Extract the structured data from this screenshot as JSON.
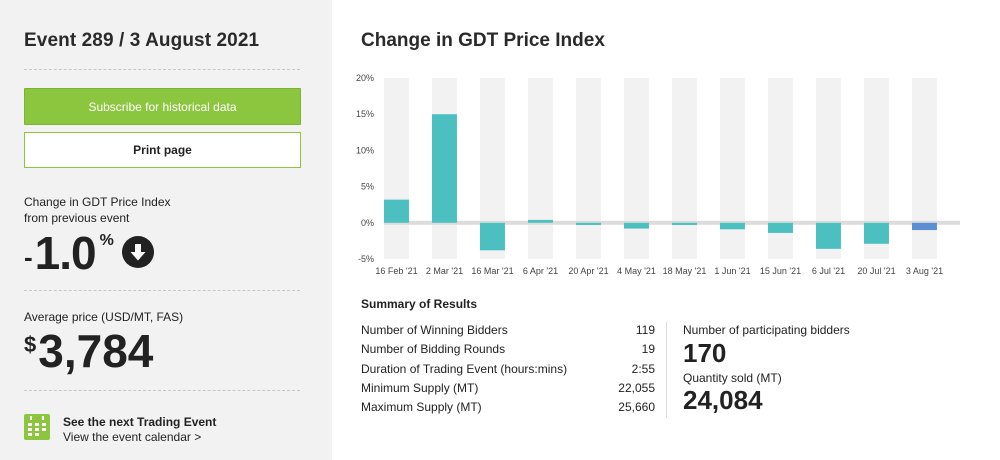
{
  "event": {
    "title": "Event 289 / 3 August 2021"
  },
  "buttons": {
    "subscribe": "Subscribe for historical data",
    "print": "Print page"
  },
  "change": {
    "label_line1": "Change in GDT Price Index",
    "label_line2": "from previous event",
    "sign": "-",
    "value": "1.0",
    "unit": "%",
    "direction_icon": "arrow-down-circle-icon"
  },
  "average": {
    "label": "Average price (USD/MT, FAS)",
    "currency": "$",
    "value": "3,784"
  },
  "next_event": {
    "title": "See the next Trading Event",
    "link": "View the event calendar >",
    "icon": "calendar-icon"
  },
  "chart_title": "Change in GDT Price Index",
  "chart_data": {
    "type": "bar",
    "categories": [
      "16 Feb '21",
      "2 Mar '21",
      "16 Mar '21",
      "6 Apr '21",
      "20 Apr '21",
      "4 May '21",
      "18 May '21",
      "1 Jun '21",
      "15 Jun '21",
      "6 Jul '21",
      "20 Jul '21",
      "3 Aug '21"
    ],
    "values": [
      3.2,
      15.0,
      -3.8,
      0.4,
      -0.3,
      -0.8,
      -0.3,
      -0.9,
      -1.4,
      -3.6,
      -2.9,
      -1.0
    ],
    "y_ticks": [
      "20%",
      "15%",
      "10%",
      "5%",
      "0%",
      "-5%"
    ],
    "ylim": [
      -5,
      20
    ],
    "grid": false,
    "colors": {
      "bar": "#4cc0c0",
      "latest": "#5b8fd4",
      "band": "#f2f2f2",
      "zero": "#dcdcdc"
    }
  },
  "summary": {
    "title": "Summary of Results",
    "rows": [
      {
        "label": "Number of Winning Bidders",
        "value": "119"
      },
      {
        "label": "Number of Bidding Rounds",
        "value": "19"
      },
      {
        "label": "Duration of Trading Event (hours:mins)",
        "value": "2:55"
      },
      {
        "label": "Minimum Supply (MT)",
        "value": "22,055"
      },
      {
        "label": "Maximum Supply (MT)",
        "value": "25,660"
      }
    ],
    "participating_label": "Number of participating bidders",
    "participating_value": "170",
    "quantity_label": "Quantity sold (MT)",
    "quantity_value": "24,084"
  }
}
